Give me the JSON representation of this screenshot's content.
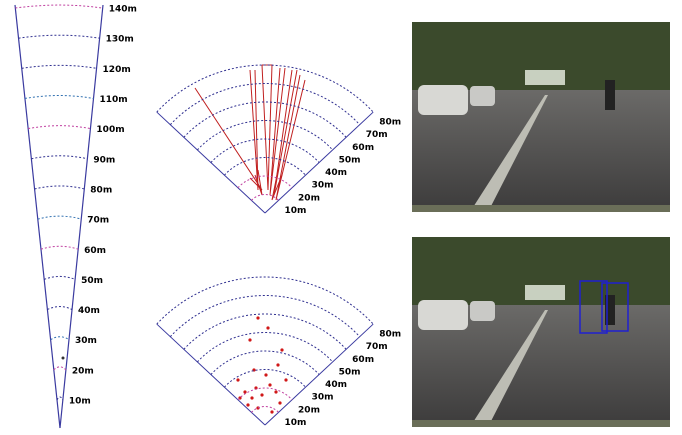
{
  "cone": {
    "labels": [
      "10m",
      "20m",
      "30m",
      "40m",
      "50m",
      "60m",
      "70m",
      "80m",
      "90m",
      "100m",
      "110m",
      "120m",
      "130m",
      "140m"
    ]
  },
  "sector_top": {
    "labels": [
      "10m",
      "20m",
      "30m",
      "40m",
      "50m",
      "60m",
      "70m",
      "80m"
    ]
  },
  "sector_bottom": {
    "labels": [
      "10m",
      "20m",
      "30m",
      "40m",
      "50m",
      "60m",
      "70m",
      "80m"
    ]
  }
}
